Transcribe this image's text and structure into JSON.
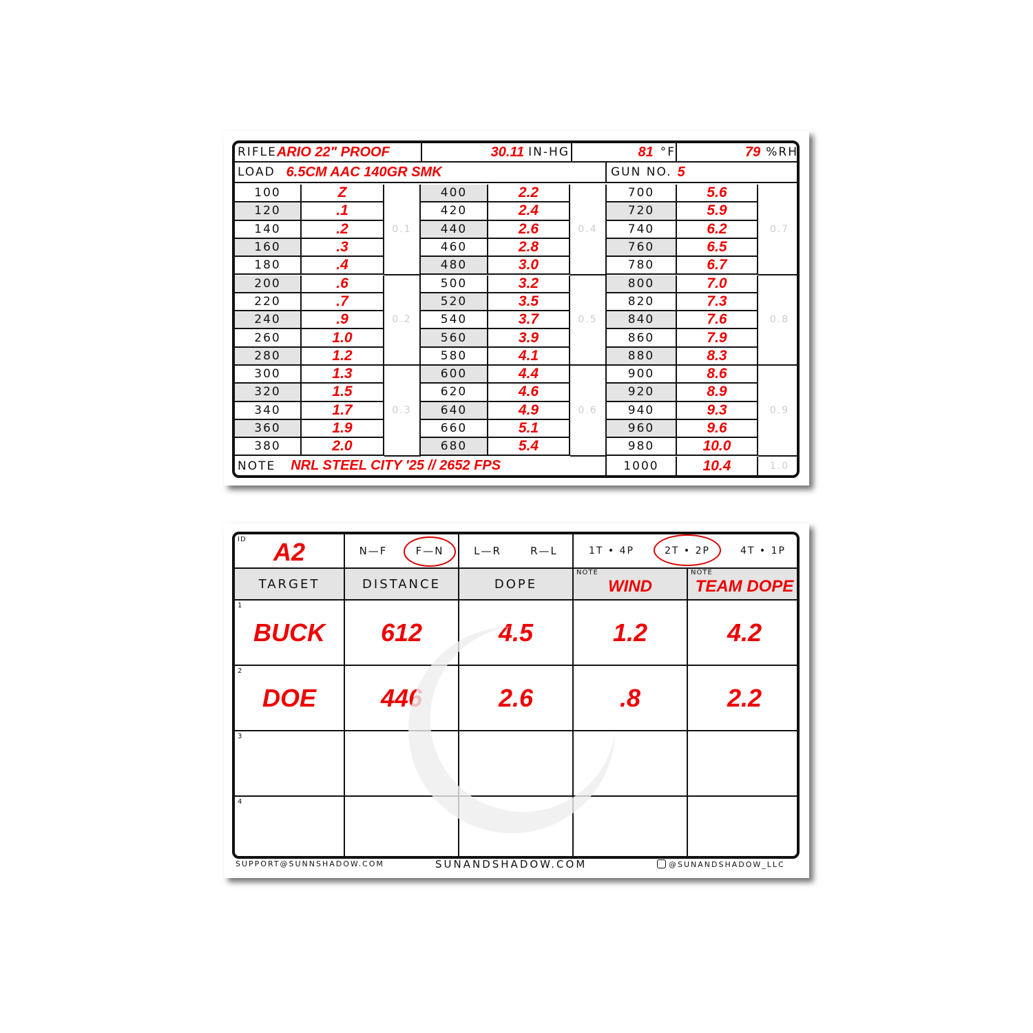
{
  "dope_card": {
    "rifle_label": "RIFLE",
    "rifle": "ARIO 22\" PROOF",
    "pressure": "30.11",
    "pressure_unit": "IN-HG",
    "temp": "81",
    "temp_unit": "°F",
    "humidity": "79",
    "humidity_unit": "%RH",
    "load_label": "LOAD",
    "load": "6.5CM AAC 140GR SMK",
    "gun_label": "GUN NO.",
    "gun": "5",
    "note_label": "NOTE",
    "note": "NRL STEEL CITY '25 // 2652 FPS",
    "groups": [
      {
        "mils": [
          "0.1",
          "0.2",
          "0.3"
        ],
        "rows": [
          [
            "100",
            "Z"
          ],
          [
            "120",
            ".1"
          ],
          [
            "140",
            ".2"
          ],
          [
            "160",
            ".3"
          ],
          [
            "180",
            ".4"
          ],
          [
            "200",
            ".6"
          ],
          [
            "220",
            ".7"
          ],
          [
            "240",
            ".9"
          ],
          [
            "260",
            "1.0"
          ],
          [
            "280",
            "1.2"
          ],
          [
            "300",
            "1.3"
          ],
          [
            "320",
            "1.5"
          ],
          [
            "340",
            "1.7"
          ],
          [
            "360",
            "1.9"
          ],
          [
            "380",
            "2.0"
          ]
        ]
      },
      {
        "mils": [
          "0.4",
          "0.5",
          "0.6"
        ],
        "rows": [
          [
            "400",
            "2.2"
          ],
          [
            "420",
            "2.4"
          ],
          [
            "440",
            "2.6"
          ],
          [
            "460",
            "2.8"
          ],
          [
            "480",
            "3.0"
          ],
          [
            "500",
            "3.2"
          ],
          [
            "520",
            "3.5"
          ],
          [
            "540",
            "3.7"
          ],
          [
            "560",
            "3.9"
          ],
          [
            "580",
            "4.1"
          ],
          [
            "600",
            "4.4"
          ],
          [
            "620",
            "4.6"
          ],
          [
            "640",
            "4.9"
          ],
          [
            "660",
            "5.1"
          ],
          [
            "680",
            "5.4"
          ]
        ]
      },
      {
        "mils": [
          "0.7",
          "0.8",
          "0.9"
        ],
        "rows": [
          [
            "700",
            "5.6"
          ],
          [
            "720",
            "5.9"
          ],
          [
            "740",
            "6.2"
          ],
          [
            "760",
            "6.5"
          ],
          [
            "780",
            "6.7"
          ],
          [
            "800",
            "7.0"
          ],
          [
            "820",
            "7.3"
          ],
          [
            "840",
            "7.6"
          ],
          [
            "860",
            "7.9"
          ],
          [
            "880",
            "8.3"
          ],
          [
            "900",
            "8.6"
          ],
          [
            "920",
            "8.9"
          ],
          [
            "940",
            "9.3"
          ],
          [
            "960",
            "9.6"
          ],
          [
            "980",
            "10.0"
          ]
        ]
      }
    ],
    "last_row": {
      "range": "1000",
      "dope": "10.4",
      "mil": "1.0"
    }
  },
  "stage_card": {
    "id_label": "ID",
    "id": "A2",
    "directions": [
      "N—F",
      "F—N",
      "L—R",
      "R—L"
    ],
    "direction_selected": "F—N",
    "formats": [
      "1T • 4P",
      "2T • 2P",
      "4T • 1P"
    ],
    "format_selected": "2T • 2P",
    "headers": [
      "TARGET",
      "DISTANCE",
      "DOPE"
    ],
    "note_label": "NOTE",
    "note_headers": [
      "WIND",
      "TEAM DOPE"
    ],
    "rows": [
      {
        "num": "1",
        "cells": [
          "BUCK",
          "612",
          "4.5",
          "1.2",
          "4.2"
        ]
      },
      {
        "num": "2",
        "cells": [
          "DOE",
          "446",
          "2.6",
          ".8",
          "2.2"
        ]
      },
      {
        "num": "3",
        "cells": [
          "",
          "",
          "",
          "",
          ""
        ]
      },
      {
        "num": "4",
        "cells": [
          "",
          "",
          "",
          "",
          ""
        ]
      }
    ],
    "footer": {
      "email": "SUPPORT@SUNNSHADOW.COM",
      "site": "SUNANDSHADOW.COM",
      "instagram": "@SUNANDSHADOW_LLC"
    }
  },
  "colors": {
    "ink": "#e00000",
    "shade": "#e4e4e4"
  }
}
